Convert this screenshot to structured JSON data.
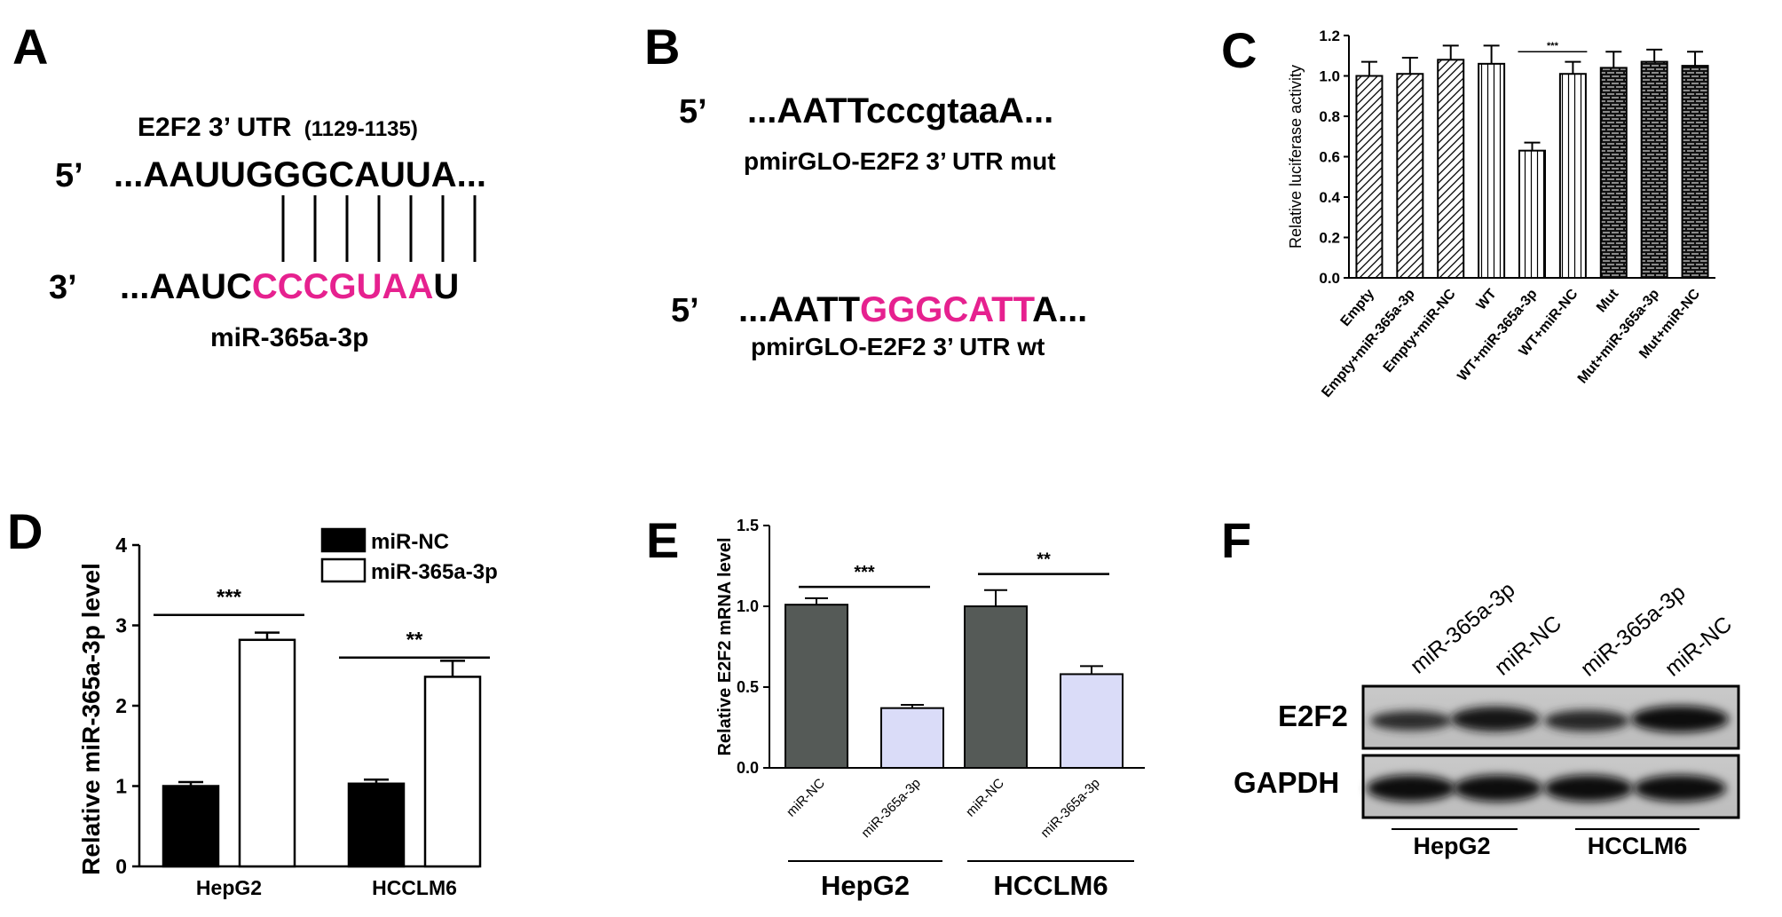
{
  "panels": {
    "a": {
      "letter": "A",
      "title": "E2F2 3’ UTR",
      "title_range": "(1129-1135)",
      "top_prime": "5’",
      "top_seq": "...AAUUGGGCAUUA...",
      "bottom_prime": "3’",
      "bottom_seq_prefix": "...AAUC",
      "bottom_seq_highlight": "CCCGUAA",
      "bottom_seq_suffix": "U",
      "mirna_label": "miR-365a-3p",
      "pair_count": 7,
      "highlight_color": "#e6218f"
    },
    "b": {
      "letter": "B",
      "mut_prime": "5’",
      "mut_seq": "...AATTcccgtaaA...",
      "mut_label": "pmirGLO-E2F2 3’ UTR mut",
      "wt_prime": "5’",
      "wt_seq_prefix": "...AATT",
      "wt_seq_highlight": "GGGCATT",
      "wt_seq_suffix": "A...",
      "wt_label": "pmirGLO-E2F2 3’ UTR wt"
    },
    "c": {
      "letter": "C"
    },
    "d": {
      "letter": "D"
    },
    "e": {
      "letter": "E"
    },
    "f": {
      "letter": "F",
      "lane_labels": [
        "miR-365a-3p",
        "miR-NC",
        "miR-365a-3p",
        "miR-NC"
      ],
      "rows": [
        "E2F2",
        "GAPDH"
      ],
      "groups": [
        "HepG2",
        "HCCLM6"
      ]
    }
  },
  "chart_data": [
    {
      "panel": "C",
      "type": "bar",
      "categories": [
        "Empty",
        "Empty+miR-365a-3p",
        "Empty+miR-NC",
        "WT",
        "WT+miR-365a-3p",
        "WT+miR-NC",
        "Mut",
        "Mut+miR-365a-3p",
        "Mut+miR-NC"
      ],
      "values": [
        1.0,
        1.01,
        1.08,
        1.06,
        0.63,
        1.01,
        1.04,
        1.07,
        1.05
      ],
      "errors": [
        0.07,
        0.08,
        0.07,
        0.09,
        0.04,
        0.06,
        0.08,
        0.06,
        0.07
      ],
      "patterns": [
        "diagonal",
        "diagonal",
        "diagonal",
        "vertical",
        "vertical",
        "vertical",
        "brick",
        "brick",
        "brick"
      ],
      "ylabel": "Relative luciferase activity",
      "ylim": [
        0,
        1.2
      ],
      "yticks": [
        "0.0",
        "0.2",
        "0.4",
        "0.6",
        "0.8",
        "1.0",
        "1.2"
      ],
      "significance": [
        {
          "from": 4,
          "to": 5,
          "label": "***"
        }
      ]
    },
    {
      "panel": "D",
      "type": "bar",
      "categories": [
        "HepG2",
        "HCCLM6"
      ],
      "series": [
        {
          "name": "miR-NC",
          "values": [
            1.0,
            1.03
          ],
          "errors": [
            0.05,
            0.05
          ],
          "color": "#000000"
        },
        {
          "name": "miR-365a-3p",
          "values": [
            2.82,
            2.36
          ],
          "errors": [
            0.09,
            0.2
          ],
          "color": "#ffffff"
        }
      ],
      "ylabel": "Relative  miR-365a-3p level",
      "ylim": [
        0,
        4
      ],
      "yticks": [
        "0",
        "1",
        "2",
        "3",
        "4"
      ],
      "significance": [
        {
          "group": 0,
          "label": "***"
        },
        {
          "group": 1,
          "label": "**"
        }
      ],
      "legend": "top-right"
    },
    {
      "panel": "E",
      "type": "bar",
      "categories": [
        "miR-NC",
        "miR-365a-3p",
        "miR-NC",
        "miR-365a-3p"
      ],
      "groups": [
        "HepG2",
        "HCCLM6"
      ],
      "values": [
        1.01,
        0.37,
        1.0,
        0.58
      ],
      "errors": [
        0.04,
        0.02,
        0.1,
        0.05
      ],
      "colors": [
        "#555a57",
        "#dadcf8",
        "#555a57",
        "#dadcf8"
      ],
      "ylabel": "Relative E2F2 mRNA level",
      "ylim": [
        0,
        1.5
      ],
      "yticks": [
        "0.0",
        "0.5",
        "1.0",
        "1.5"
      ],
      "significance": [
        {
          "from": 0,
          "to": 1,
          "label": "***"
        },
        {
          "from": 2,
          "to": 3,
          "label": "**"
        }
      ]
    }
  ]
}
